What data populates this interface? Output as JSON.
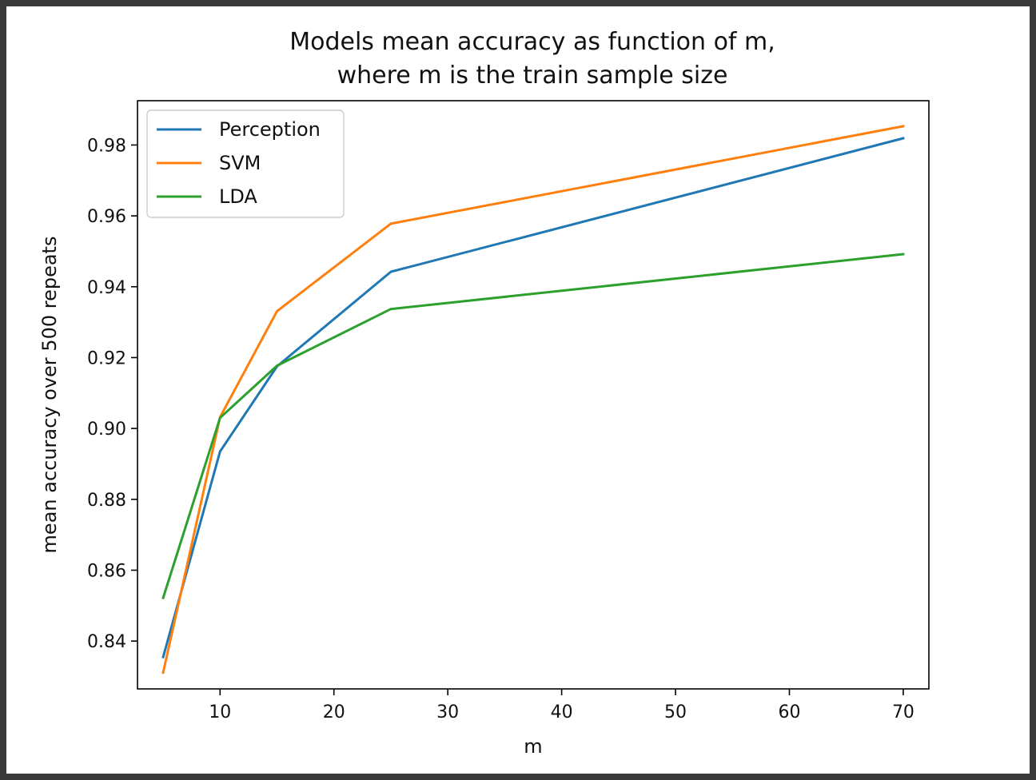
{
  "chart_data": {
    "type": "line",
    "title_line1": "Models mean accuracy as function of m,",
    "title_line2": "where m is the train sample size",
    "xlabel": "m",
    "ylabel": "mean accuracy over 500 repeats",
    "x": [
      5,
      10,
      15,
      25,
      70
    ],
    "xlim": [
      2.75,
      72.25
    ],
    "ylim": [
      0.8265,
      0.9925
    ],
    "xticks": [
      10,
      20,
      30,
      40,
      50,
      60,
      70
    ],
    "yticks": [
      0.84,
      0.86,
      0.88,
      0.9,
      0.92,
      0.94,
      0.96,
      0.98
    ],
    "xtick_labels": [
      "10",
      "20",
      "30",
      "40",
      "50",
      "60",
      "70"
    ],
    "ytick_labels": [
      "0.84",
      "0.86",
      "0.88",
      "0.90",
      "0.92",
      "0.94",
      "0.96",
      "0.98"
    ],
    "grid": false,
    "legend_position": "upper-left",
    "series": [
      {
        "name": "Perception",
        "color": "#1f77b4",
        "values": [
          0.8355,
          0.8935,
          0.9175,
          0.9442,
          0.9819
        ]
      },
      {
        "name": "SVM",
        "color": "#ff7f0e",
        "values": [
          0.8311,
          0.9032,
          0.9331,
          0.9578,
          0.9853
        ]
      },
      {
        "name": "LDA",
        "color": "#2ca02c",
        "values": [
          0.8522,
          0.903,
          0.9177,
          0.9337,
          0.9492
        ]
      }
    ]
  }
}
